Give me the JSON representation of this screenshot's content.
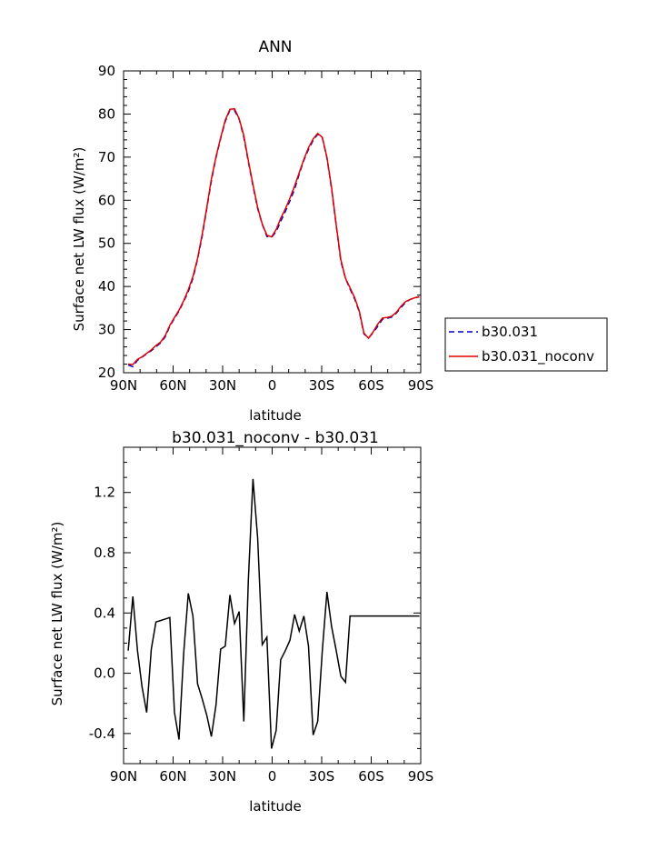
{
  "chart_data": [
    {
      "type": "line",
      "title": "ANN",
      "xlabel": "latitude",
      "ylabel": "Surface net LW flux (W/m²)",
      "xlim": [
        90,
        -90
      ],
      "ylim": [
        20,
        90
      ],
      "xticks": [
        90,
        60,
        30,
        0,
        -30,
        -60,
        -90
      ],
      "xtick_labels": [
        "90N",
        "60N",
        "30N",
        "0",
        "30S",
        "60S",
        "90S"
      ],
      "yticks": [
        20,
        30,
        40,
        50,
        60,
        70,
        80,
        90
      ],
      "ytick_labels": [
        "20",
        "30",
        "40",
        "50",
        "60",
        "70",
        "80",
        "90"
      ],
      "legend_position": "right",
      "series": [
        {
          "name": "b30.031",
          "color": "#0000cc",
          "dash": "dashed",
          "x": [
            87.2,
            84.4,
            81.6,
            78.8,
            76.0,
            73.2,
            70.4,
            67.6,
            64.8,
            62.0,
            59.2,
            56.4,
            53.6,
            50.8,
            48.0,
            45.2,
            42.4,
            39.6,
            36.8,
            34.0,
            31.2,
            28.4,
            25.6,
            22.8,
            20.0,
            17.2,
            14.4,
            11.6,
            8.8,
            6.0,
            3.2,
            0.4,
            -2.4,
            -5.2,
            -8.0,
            -10.8,
            -13.6,
            -16.4,
            -19.2,
            -22.0,
            -24.8,
            -27.6,
            -30.4,
            -33.2,
            -36.0,
            -38.8,
            -41.6,
            -44.4,
            -47.2,
            -50.0,
            -52.8,
            -55.6,
            -58.4,
            -61.2,
            -64.0,
            -66.8,
            -69.6,
            -72.4,
            -75.2,
            -78.0,
            -80.8,
            -83.6,
            -86.4,
            -89.2
          ],
          "y": [
            21.8,
            21.4,
            22.9,
            23.6,
            24.4,
            25.1,
            26.0,
            26.9,
            28.3,
            30.8,
            32.6,
            34.3,
            36.5,
            38.8,
            41.9,
            46.3,
            51.7,
            58.1,
            64.5,
            69.9,
            74.3,
            78.3,
            80.9,
            80.8,
            78.8,
            74.6,
            68.9,
            63.3,
            58.1,
            54.4,
            51.6,
            51.4,
            52.7,
            55.1,
            57.4,
            59.9,
            62.6,
            66.1,
            69.3,
            71.8,
            73.9,
            75.3,
            74.5,
            69.8,
            62.6,
            54.1,
            45.8,
            41.9,
            39.4,
            37.1,
            34.1,
            29.0,
            28.1,
            29.3,
            30.8,
            32.4,
            32.6,
            32.9,
            33.8,
            35.1,
            36.3,
            37.0,
            37.4,
            37.6
          ]
        },
        {
          "name": "b30.031_noconv",
          "color": "#e00000",
          "dash": "solid",
          "x": [
            87.2,
            84.4,
            81.6,
            78.8,
            76.0,
            73.2,
            70.4,
            67.6,
            64.8,
            62.0,
            59.2,
            56.4,
            53.6,
            50.8,
            48.0,
            45.2,
            42.4,
            39.6,
            36.8,
            34.0,
            31.2,
            28.4,
            25.6,
            22.8,
            20.0,
            17.2,
            14.4,
            11.6,
            8.8,
            6.0,
            3.2,
            0.4,
            -2.4,
            -5.2,
            -8.0,
            -10.8,
            -13.6,
            -16.4,
            -19.2,
            -22.0,
            -24.8,
            -27.6,
            -30.4,
            -33.2,
            -36.0,
            -38.8,
            -41.6,
            -44.4,
            -47.2,
            -50.0,
            -52.8,
            -55.6,
            -58.4,
            -61.2,
            -64.0,
            -66.8,
            -69.6,
            -72.4,
            -75.2,
            -78.0,
            -80.8,
            -83.6,
            -86.4,
            -89.2
          ],
          "y": [
            22.0,
            21.9,
            23.1,
            23.7,
            24.5,
            25.3,
            26.3,
            27.1,
            28.6,
            31.0,
            32.8,
            34.5,
            36.7,
            39.2,
            42.3,
            46.5,
            52.1,
            58.4,
            64.9,
            70.1,
            74.5,
            78.6,
            81.1,
            81.2,
            78.9,
            75.0,
            69.2,
            63.6,
            58.4,
            54.5,
            51.9,
            51.5,
            53.2,
            55.8,
            58.0,
            60.5,
            63.3,
            66.4,
            69.5,
            72.2,
            74.2,
            75.5,
            74.6,
            69.9,
            62.9,
            54.3,
            46.2,
            41.9,
            39.7,
            37.4,
            34.3,
            29.2,
            28.0,
            29.5,
            31.3,
            32.7,
            32.8,
            33.1,
            34.0,
            35.4,
            36.5,
            37.0,
            37.4,
            37.6
          ]
        }
      ]
    },
    {
      "type": "line",
      "title": "b30.031_noconv - b30.031",
      "xlabel": "latitude",
      "ylabel": "Surface net LW flux (W/m²)",
      "xlim": [
        90,
        -90
      ],
      "ylim": [
        -0.6,
        1.5
      ],
      "xticks": [
        90,
        60,
        30,
        0,
        -30,
        -60,
        -90
      ],
      "xtick_labels": [
        "90N",
        "60N",
        "30N",
        "0",
        "30S",
        "60S",
        "90S"
      ],
      "yticks": [
        -0.4,
        0.0,
        0.4,
        0.8,
        1.2
      ],
      "ytick_labels": [
        "-0.4",
        "0.0",
        "0.4",
        "0.8",
        "1.2"
      ],
      "series": [
        {
          "color": "#000000",
          "dash": "solid",
          "x": [
            87.2,
            84.4,
            81.6,
            78.8,
            76.0,
            73.2,
            70.4,
            67.6,
            64.8,
            62.0,
            59.2,
            56.4,
            53.6,
            50.8,
            48.0,
            45.2,
            42.4,
            39.6,
            36.8,
            34.0,
            31.2,
            28.4,
            25.6,
            22.8,
            20.0,
            17.2,
            14.4,
            11.6,
            8.8,
            6.0,
            3.2,
            0.4,
            -2.4,
            -5.2,
            -8.0,
            -10.8,
            -13.6,
            -16.4,
            -19.2,
            -22.0,
            -24.8,
            -27.6,
            -30.4,
            -33.2,
            -36.0,
            -38.8,
            -41.6,
            -44.4,
            -47.2,
            -50.0,
            -52.8,
            -55.6,
            -58.4,
            -61.2,
            -64.0,
            -66.8,
            -69.6,
            -72.4,
            -75.2,
            -78.0,
            -80.8,
            -83.6,
            -86.4,
            -89.2
          ],
          "y": [
            0.15,
            0.51,
            0.15,
            -0.09,
            -0.26,
            0.16,
            0.34,
            0.35,
            0.36,
            0.37,
            -0.26,
            -0.44,
            0.13,
            0.53,
            0.38,
            -0.07,
            -0.17,
            -0.28,
            -0.42,
            -0.21,
            0.16,
            0.18,
            0.52,
            0.33,
            0.41,
            -0.32,
            0.62,
            1.29,
            0.9,
            0.19,
            0.24,
            -0.5,
            -0.38,
            0.09,
            0.15,
            0.22,
            0.39,
            0.28,
            0.38,
            0.18,
            -0.41,
            -0.32,
            0.15,
            0.54,
            0.31,
            0.15,
            -0.02,
            -0.06,
            0.38,
            0.38,
            0.38,
            0.38,
            0.38,
            0.38,
            0.38,
            0.38,
            0.38,
            0.38,
            0.38,
            0.38,
            0.38,
            0.38,
            0.38,
            0.38
          ]
        }
      ]
    }
  ]
}
